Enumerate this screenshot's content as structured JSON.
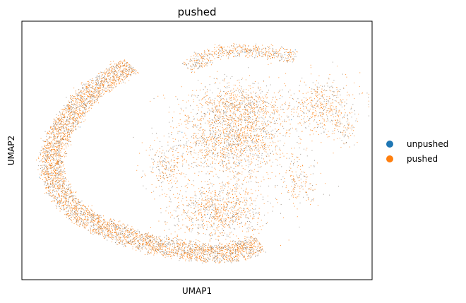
{
  "chart_data": {
    "type": "scatter",
    "title": "pushed",
    "xlabel": "UMAP1",
    "ylabel": "UMAP2",
    "xlim": [
      0,
      100
    ],
    "ylim": [
      0,
      100
    ],
    "grid": false,
    "ticks_visible": false,
    "legend_placement": "right",
    "marker_size": "tiny",
    "series": [
      {
        "name": "unpushed",
        "color": "#1f77b4",
        "n_points": 60,
        "values": []
      },
      {
        "name": "pushed",
        "color": "#ff7f0e",
        "n_points": 9500,
        "values": []
      }
    ],
    "regions": [
      {
        "label": "left arc",
        "density": 0.9,
        "path": [
          [
            31,
            83
          ],
          [
            25,
            78
          ],
          [
            19,
            72
          ],
          [
            14,
            64
          ],
          [
            10,
            55
          ],
          [
            8,
            45
          ],
          [
            10,
            36
          ],
          [
            14,
            28
          ],
          [
            20,
            22
          ],
          [
            28,
            18
          ],
          [
            36,
            14
          ],
          [
            44,
            12
          ],
          [
            54,
            10
          ],
          [
            62,
            11
          ],
          [
            68,
            14
          ]
        ],
        "thickness": 6.5
      },
      {
        "label": "upper outer arc",
        "density": 0.55,
        "path": [
          [
            47,
            82
          ],
          [
            55,
            88
          ],
          [
            64,
            89
          ],
          [
            72,
            88
          ],
          [
            78,
            86
          ]
        ],
        "thickness": 4.5
      },
      {
        "label": "center mass",
        "cx": 60,
        "cy": 55,
        "rx": 16,
        "ry": 15,
        "density": 1.0
      },
      {
        "label": "top center",
        "cx": 62,
        "cy": 68,
        "rx": 13,
        "ry": 8,
        "density": 0.85
      },
      {
        "label": "lower blob",
        "cx": 56,
        "cy": 27,
        "rx": 14,
        "ry": 11,
        "density": 0.9
      },
      {
        "label": "right cluster",
        "cx": 86,
        "cy": 67,
        "rx": 9,
        "ry": 11,
        "density": 0.7
      },
      {
        "label": "right lower",
        "cx": 79,
        "cy": 38,
        "rx": 6,
        "ry": 9,
        "density": 0.45
      },
      {
        "label": "left inner",
        "cx": 41,
        "cy": 44,
        "rx": 6,
        "ry": 10,
        "density": 0.55
      },
      {
        "label": "far right tail",
        "cx": 93,
        "cy": 58,
        "rx": 3,
        "ry": 6,
        "density": 0.4
      }
    ]
  }
}
